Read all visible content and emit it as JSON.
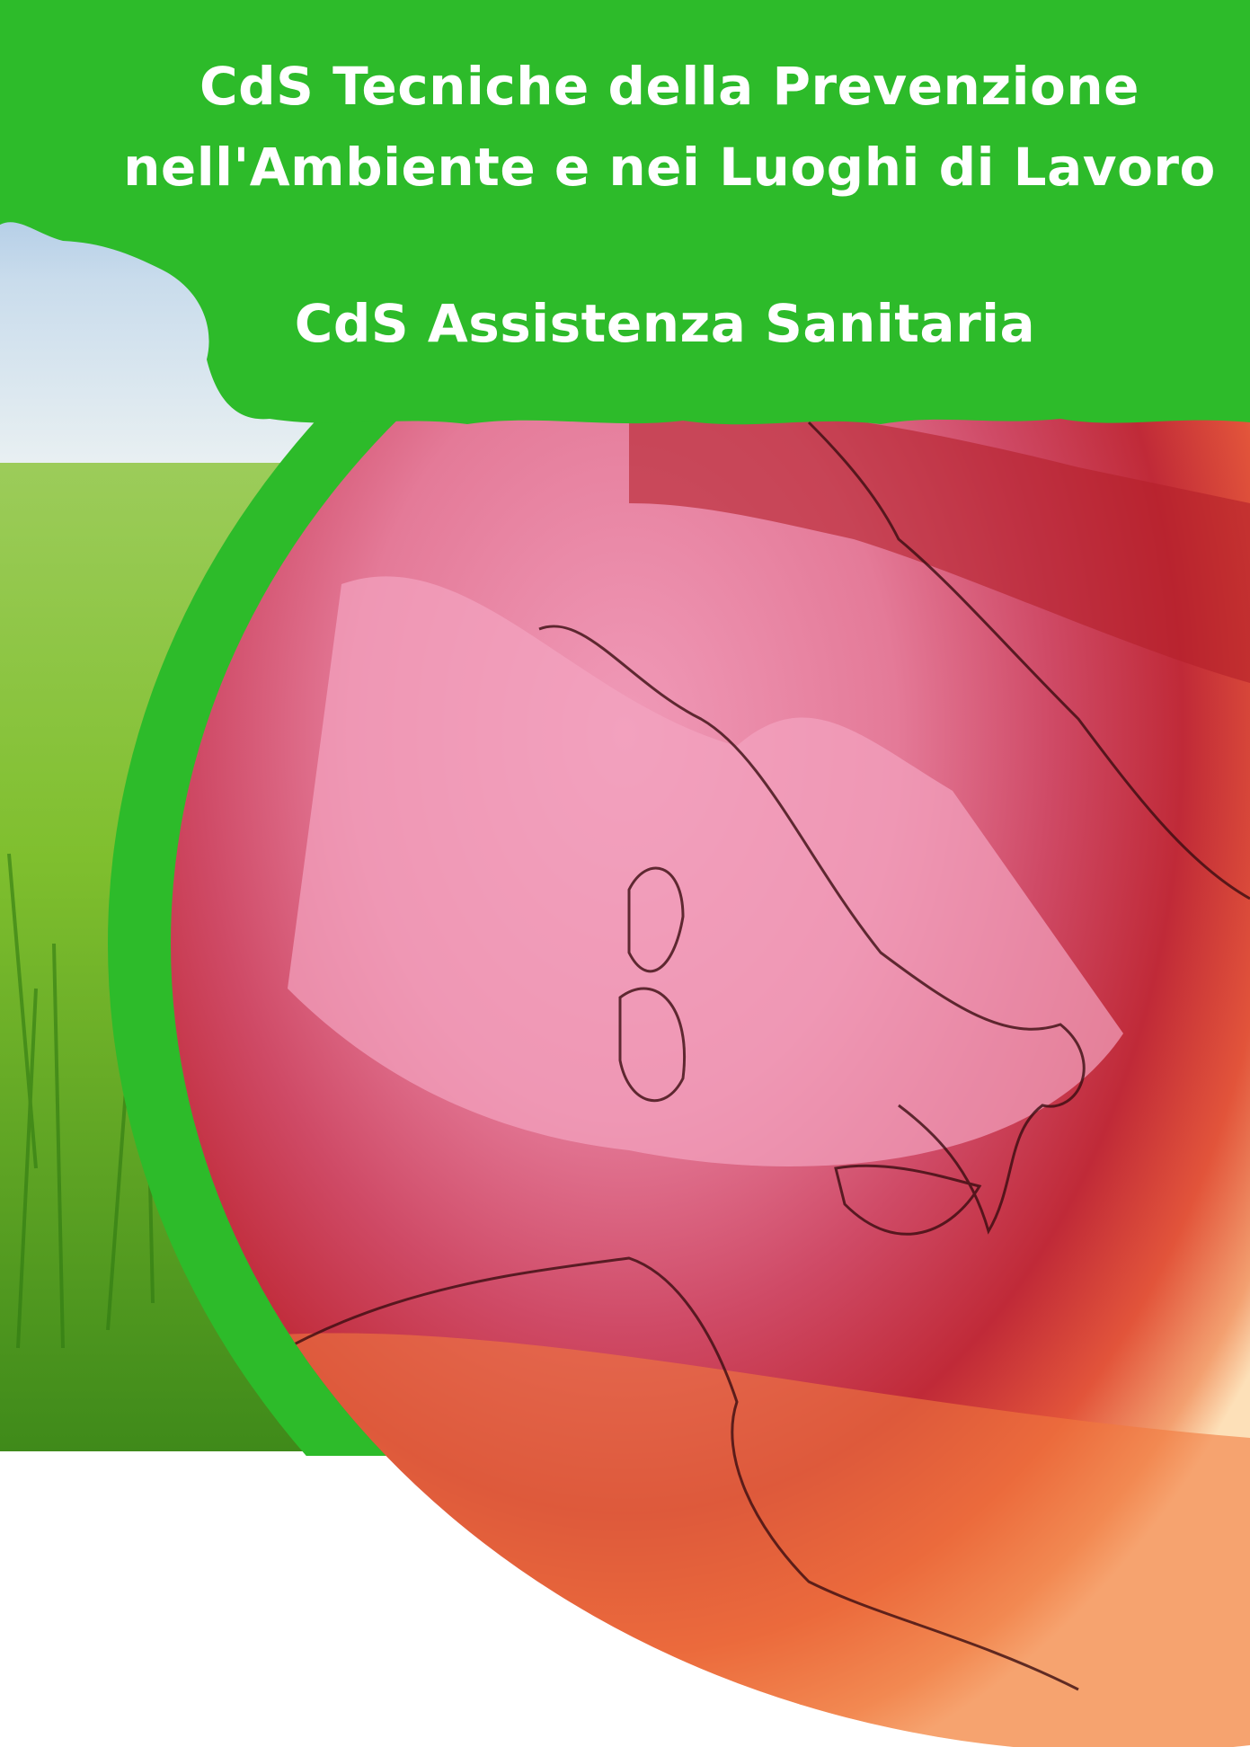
{
  "heading": {
    "line1": "CdS Tecniche della Prevenzione",
    "line2": "nell'Ambiente e nei Luoghi di Lavoro",
    "subtitle": "CdS Assistenza Sanitaria"
  }
}
